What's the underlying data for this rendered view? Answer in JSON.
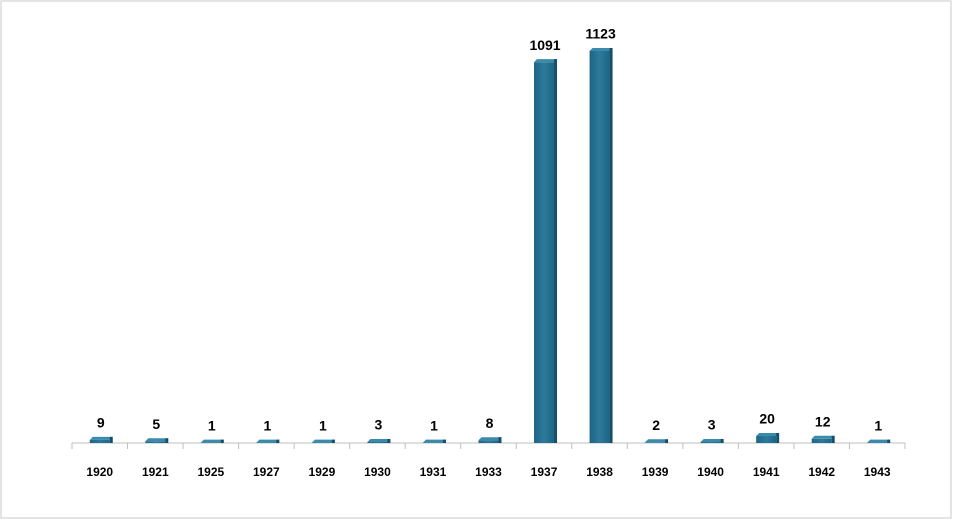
{
  "chart_data": {
    "type": "bar",
    "categories": [
      "1920",
      "1921",
      "1925",
      "1927",
      "1929",
      "1930",
      "1931",
      "1933",
      "1937",
      "1938",
      "1939",
      "1940",
      "1941",
      "1942",
      "1943"
    ],
    "values": [
      9,
      5,
      1,
      1,
      1,
      3,
      1,
      8,
      1091,
      1123,
      2,
      3,
      20,
      12,
      1
    ],
    "color": "#246f8f"
  }
}
